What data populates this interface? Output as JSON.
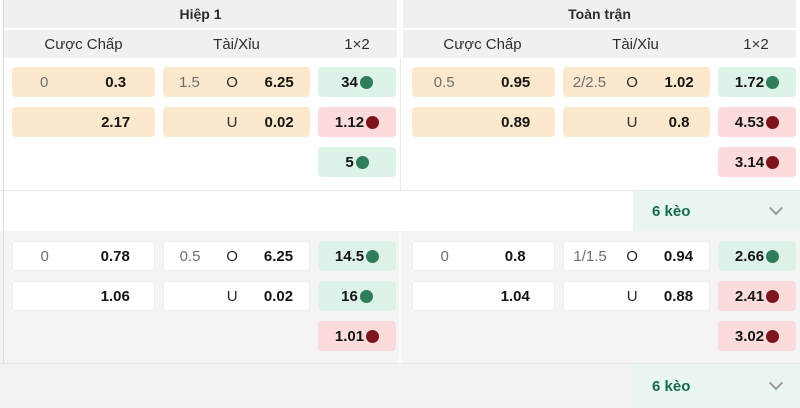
{
  "header": {
    "groups": [
      {
        "title": "Hiệp 1"
      },
      {
        "title": "Toàn trận"
      }
    ],
    "columns": [
      "Cược Chấp",
      "Tài/Xỉu",
      "1×2"
    ]
  },
  "blocks": [
    {
      "expander_label": "6 kèo",
      "halves": [
        {
          "handicap_rows": [
            {
              "line": "0",
              "odds": "0.3"
            },
            {
              "line": "",
              "odds": "2.17"
            }
          ],
          "over_under_rows": [
            {
              "line": "1.5",
              "side": "O",
              "odds": "6.25"
            },
            {
              "line": "",
              "side": "U",
              "odds": "0.02"
            }
          ],
          "one_x_two_rows": [
            {
              "value": "34",
              "trend": "up"
            },
            {
              "value": "1.12",
              "trend": "down"
            },
            {
              "value": "5",
              "trend": "up"
            }
          ]
        },
        {
          "handicap_rows": [
            {
              "line": "0.5",
              "odds": "0.95"
            },
            {
              "line": "",
              "odds": "0.89"
            }
          ],
          "over_under_rows": [
            {
              "line": "2/2.5",
              "side": "O",
              "odds": "1.02"
            },
            {
              "line": "",
              "side": "U",
              "odds": "0.8"
            }
          ],
          "one_x_two_rows": [
            {
              "value": "1.72",
              "trend": "up"
            },
            {
              "value": "4.53",
              "trend": "down"
            },
            {
              "value": "3.14",
              "trend": "down"
            }
          ]
        }
      ]
    },
    {
      "expander_label": "6 kèo",
      "halves": [
        {
          "handicap_rows": [
            {
              "line": "0",
              "odds": "0.78"
            },
            {
              "line": "",
              "odds": "1.06"
            }
          ],
          "over_under_rows": [
            {
              "line": "0.5",
              "side": "O",
              "odds": "6.25"
            },
            {
              "line": "",
              "side": "U",
              "odds": "0.02"
            }
          ],
          "one_x_two_rows": [
            {
              "value": "14.5",
              "trend": "up"
            },
            {
              "value": "16",
              "trend": "up"
            },
            {
              "value": "1.01",
              "trend": "down"
            }
          ]
        },
        {
          "handicap_rows": [
            {
              "line": "0",
              "odds": "0.8"
            },
            {
              "line": "",
              "odds": "1.04"
            }
          ],
          "over_under_rows": [
            {
              "line": "1/1.5",
              "side": "O",
              "odds": "0.94"
            },
            {
              "line": "",
              "side": "U",
              "odds": "0.88"
            }
          ],
          "one_x_two_rows": [
            {
              "value": "2.66",
              "trend": "up"
            },
            {
              "value": "2.41",
              "trend": "down"
            },
            {
              "value": "3.02",
              "trend": "down"
            }
          ]
        }
      ]
    }
  ],
  "colors": {
    "header_bg": "#f0f0f1",
    "handicap_cell_bg": "#fce8cc",
    "trend_up_bg": "#ddf3e7",
    "trend_down_bg": "#fbdbdb",
    "trend_up_dot": "#2f7d5b",
    "trend_down_dot": "#7d161c",
    "expander_bg": "#e9f6ef",
    "expander_text": "#166a4e",
    "second_block_bg": "#f4f4f5"
  }
}
